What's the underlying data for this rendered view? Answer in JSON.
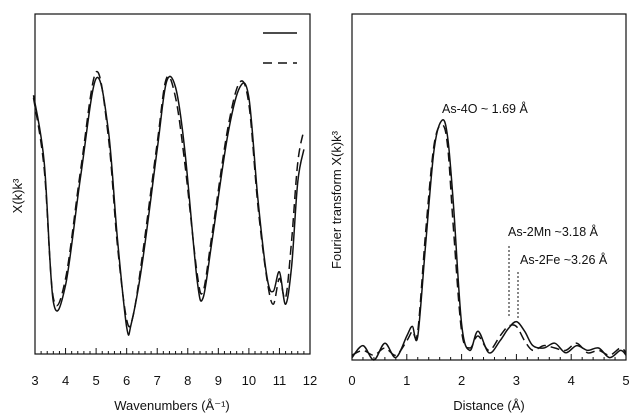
{
  "chart_data": [
    {
      "type": "line",
      "xlabel": "Wavenumbers (Å⁻¹)",
      "ylabel": "X(k)k³",
      "xlim": [
        3,
        12
      ],
      "x_ticks": [
        "3",
        "4",
        "5",
        "6",
        "7",
        "8",
        "9",
        "10",
        "11",
        "12"
      ],
      "y_ticks_shown": false,
      "legend": {
        "placement": "top-right",
        "styles": [
          "solid",
          "dashed"
        ]
      },
      "series": [
        {
          "style": "solid",
          "x": [
            2.95,
            3.3,
            3.6,
            4.0,
            4.5,
            5.0,
            5.4,
            5.7,
            6.0,
            6.15,
            6.5,
            7.0,
            7.3,
            7.6,
            7.9,
            8.3,
            8.5,
            8.8,
            9.3,
            9.7,
            10.0,
            10.3,
            10.6,
            10.8,
            11.0,
            11.2,
            11.4,
            11.6,
            11.8
          ],
          "y": [
            0.82,
            0.3,
            -0.78,
            -0.65,
            0.2,
            0.95,
            0.55,
            -0.3,
            -0.98,
            -0.95,
            -0.5,
            0.4,
            0.92,
            0.88,
            0.4,
            -0.6,
            -0.75,
            -0.3,
            0.5,
            0.88,
            0.8,
            0.0,
            -0.6,
            -0.7,
            -0.55,
            -0.8,
            -0.5,
            0.15,
            0.4
          ]
        },
        {
          "style": "dashed",
          "x": [
            2.95,
            3.3,
            3.6,
            4.0,
            4.5,
            5.0,
            5.4,
            5.7,
            6.0,
            6.2,
            6.5,
            7.0,
            7.3,
            7.6,
            7.9,
            8.3,
            8.5,
            8.8,
            9.3,
            9.7,
            10.0,
            10.3,
            10.6,
            10.8,
            11.0,
            11.2,
            11.4,
            11.6,
            11.8
          ],
          "y": [
            0.8,
            0.25,
            -0.75,
            -0.6,
            0.25,
            1.0,
            0.5,
            -0.35,
            -0.92,
            -0.9,
            -0.45,
            0.45,
            0.95,
            0.8,
            0.3,
            -0.55,
            -0.7,
            -0.25,
            0.55,
            0.92,
            0.75,
            -0.05,
            -0.62,
            -0.8,
            -0.6,
            -0.75,
            -0.3,
            0.3,
            0.55
          ]
        }
      ]
    },
    {
      "type": "line",
      "xlabel": "Distance (Å)",
      "ylabel": "Fourier transform X(k)k³",
      "xlim": [
        0,
        5
      ],
      "x_ticks": [
        "0",
        "1",
        "2",
        "3",
        "4",
        "5"
      ],
      "y_ticks_shown": false,
      "annotations": [
        {
          "text": "As-4O ~ 1.69 Å",
          "x": 1.69,
          "y": 1.0
        },
        {
          "text": "As-2Mn ~3.18 Å",
          "x": 2.9,
          "y": 0.2
        },
        {
          "text": "As-2Fe ~3.26 Å",
          "x": 3.0,
          "y": 0.17
        }
      ],
      "series": [
        {
          "style": "solid",
          "x": [
            0.0,
            0.2,
            0.4,
            0.6,
            0.8,
            1.0,
            1.1,
            1.2,
            1.35,
            1.5,
            1.65,
            1.75,
            1.85,
            2.0,
            2.15,
            2.3,
            2.5,
            2.7,
            2.85,
            3.0,
            3.15,
            3.3,
            3.5,
            3.7,
            3.9,
            4.1,
            4.3,
            4.5,
            4.7,
            4.9,
            5.0
          ],
          "y": [
            0.01,
            0.06,
            0.0,
            0.07,
            0.01,
            0.1,
            0.14,
            0.1,
            0.5,
            0.88,
            1.0,
            0.92,
            0.65,
            0.15,
            0.04,
            0.12,
            0.03,
            0.08,
            0.13,
            0.16,
            0.12,
            0.06,
            0.05,
            0.07,
            0.03,
            0.06,
            0.04,
            0.05,
            0.01,
            0.04,
            0.02
          ]
        },
        {
          "style": "dashed",
          "x": [
            0.0,
            0.2,
            0.4,
            0.6,
            0.8,
            1.0,
            1.1,
            1.2,
            1.35,
            1.5,
            1.65,
            1.75,
            1.85,
            2.0,
            2.15,
            2.3,
            2.5,
            2.7,
            2.85,
            3.0,
            3.15,
            3.3,
            3.5,
            3.7,
            3.9,
            4.1,
            4.3,
            4.5,
            4.7,
            4.9,
            5.0
          ],
          "y": [
            0.02,
            0.04,
            0.02,
            0.05,
            0.02,
            0.08,
            0.12,
            0.12,
            0.55,
            0.9,
            0.98,
            0.88,
            0.55,
            0.12,
            0.05,
            0.1,
            0.04,
            0.1,
            0.14,
            0.14,
            0.08,
            0.04,
            0.06,
            0.05,
            0.04,
            0.07,
            0.03,
            0.04,
            0.02,
            0.05,
            0.03
          ]
        }
      ]
    }
  ]
}
